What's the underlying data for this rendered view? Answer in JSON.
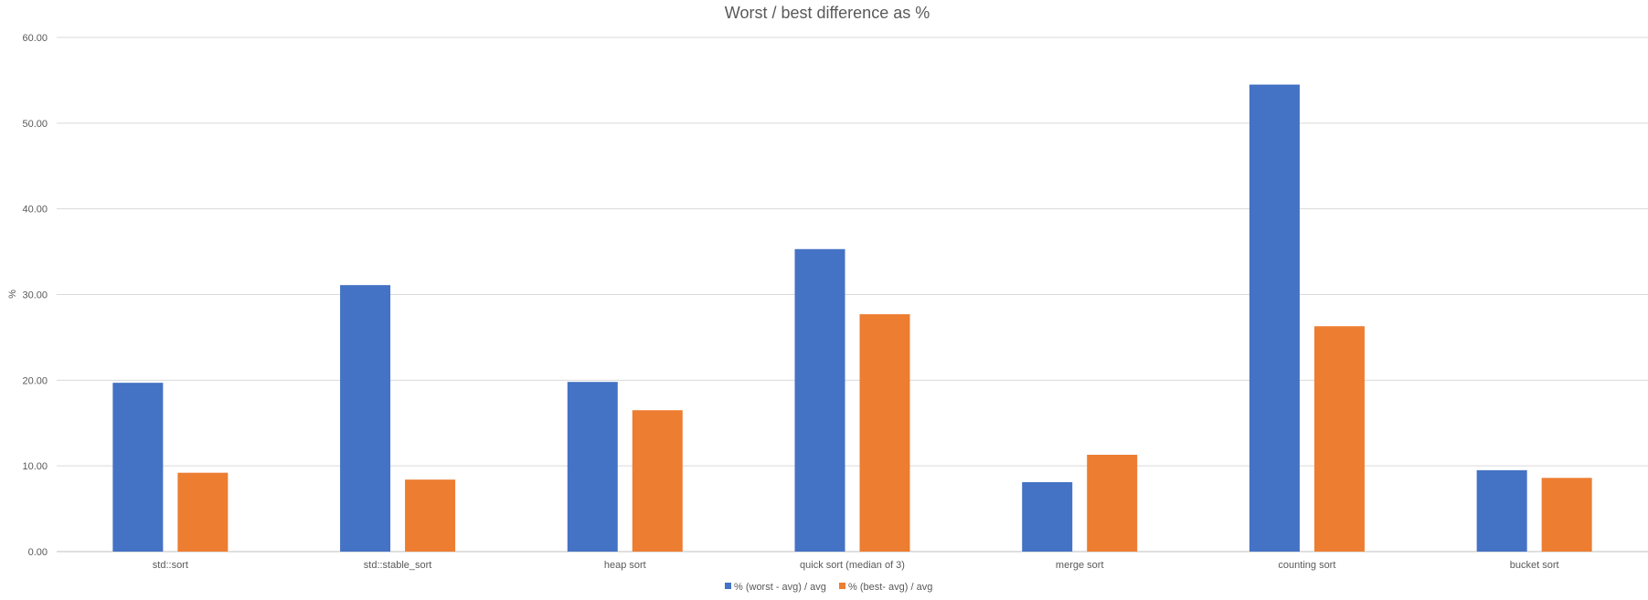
{
  "chart_data": {
    "type": "bar",
    "title": "Worst / best difference as %",
    "xlabel": "",
    "ylabel": "%",
    "ylim": [
      0,
      60
    ],
    "yticks": [
      "0.00",
      "10.00",
      "20.00",
      "30.00",
      "40.00",
      "50.00",
      "60.00"
    ],
    "grid": true,
    "legend_position": "bottom",
    "categories": [
      "std::sort",
      "std::stable_sort",
      "heap sort",
      "quick sort (median of 3)",
      "merge sort",
      "counting sort",
      "bucket sort"
    ],
    "series": [
      {
        "name": "% (worst - avg) / avg",
        "color": "#4472C4",
        "values": [
          19.7,
          31.1,
          19.8,
          35.3,
          8.1,
          54.5,
          9.5
        ]
      },
      {
        "name": "% (best- avg) / avg",
        "color": "#ED7D31",
        "values": [
          9.2,
          8.4,
          16.5,
          27.7,
          11.3,
          26.3,
          8.6
        ]
      }
    ]
  }
}
